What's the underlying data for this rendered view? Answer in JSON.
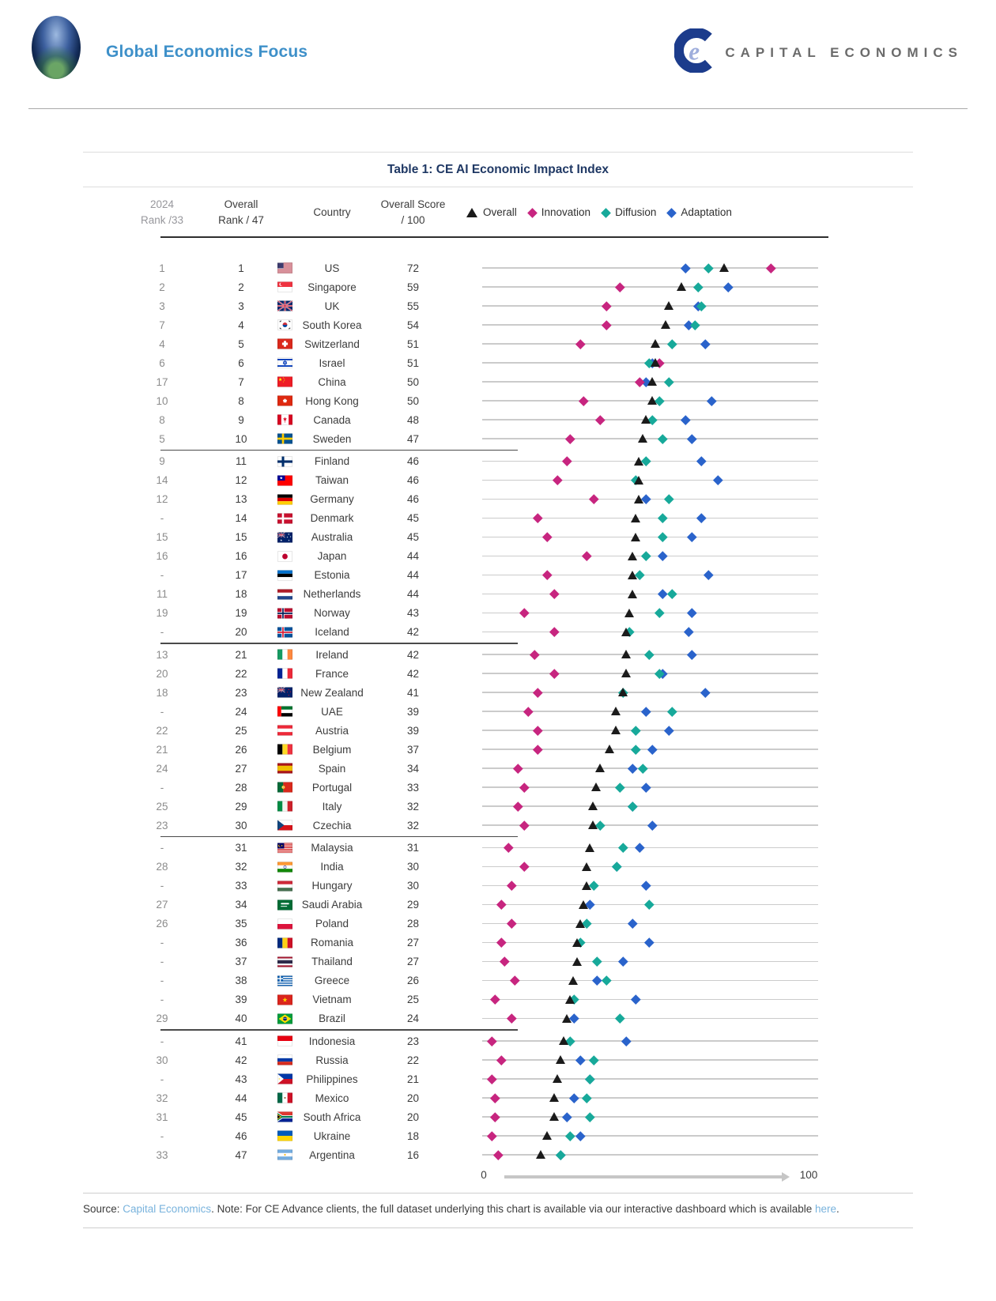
{
  "header": {
    "publication": "Global Economics Focus",
    "brand": "CAPITAL ECONOMICS"
  },
  "table": {
    "title": "Table 1: CE AI Economic Impact Index",
    "columns": {
      "rank_2024_l1": "2024",
      "rank_2024_l2": "Rank /33",
      "overall_rank_l1": "Overall",
      "overall_rank_l2": "Rank / 47",
      "country": "Country",
      "score_l1": "Overall Score",
      "score_l2": "/ 100"
    },
    "legend": [
      {
        "label": "Overall",
        "marker": "triangle",
        "color": "#1B1B1B"
      },
      {
        "label": "Innovation",
        "marker": "diamond",
        "color": "#C7257F"
      },
      {
        "label": "Diffusion",
        "marker": "diamond",
        "color": "#17A99A"
      },
      {
        "label": "Adaptation",
        "marker": "diamond",
        "color": "#2A63CB"
      }
    ],
    "section_breaks_after": [
      10,
      20,
      30,
      40
    ],
    "rows": [
      {
        "rank_2024": "1",
        "overall_rank": "1",
        "country": "US",
        "flag": "us",
        "score": 72,
        "innovation": 86,
        "diffusion": 67,
        "adaptation": 60
      },
      {
        "rank_2024": "2",
        "overall_rank": "2",
        "country": "Singapore",
        "flag": "sg",
        "score": 59,
        "innovation": 40,
        "diffusion": 64,
        "adaptation": 73
      },
      {
        "rank_2024": "3",
        "overall_rank": "3",
        "country": "UK",
        "flag": "gb",
        "score": 55,
        "innovation": 36,
        "diffusion": 65,
        "adaptation": 64
      },
      {
        "rank_2024": "7",
        "overall_rank": "4",
        "country": "South Korea",
        "flag": "kr",
        "score": 54,
        "innovation": 36,
        "diffusion": 63,
        "adaptation": 61
      },
      {
        "rank_2024": "4",
        "overall_rank": "5",
        "country": "Switzerland",
        "flag": "ch",
        "score": 51,
        "innovation": 28,
        "diffusion": 56,
        "adaptation": 66
      },
      {
        "rank_2024": "6",
        "overall_rank": "6",
        "country": "Israel",
        "flag": "il",
        "score": 51,
        "innovation": 52,
        "diffusion": 49,
        "adaptation": 50
      },
      {
        "rank_2024": "17",
        "overall_rank": "7",
        "country": "China",
        "flag": "cn",
        "score": 50,
        "innovation": 46,
        "diffusion": 55,
        "adaptation": 48
      },
      {
        "rank_2024": "10",
        "overall_rank": "8",
        "country": "Hong Kong",
        "flag": "hk",
        "score": 50,
        "innovation": 29,
        "diffusion": 52,
        "adaptation": 68
      },
      {
        "rank_2024": "8",
        "overall_rank": "9",
        "country": "Canada",
        "flag": "ca",
        "score": 48,
        "innovation": 34,
        "diffusion": 50,
        "adaptation": 60
      },
      {
        "rank_2024": "5",
        "overall_rank": "10",
        "country": "Sweden",
        "flag": "se",
        "score": 47,
        "innovation": 25,
        "diffusion": 53,
        "adaptation": 62
      },
      {
        "rank_2024": "9",
        "overall_rank": "11",
        "country": "Finland",
        "flag": "fi",
        "score": 46,
        "innovation": 24,
        "diffusion": 48,
        "adaptation": 65
      },
      {
        "rank_2024": "14",
        "overall_rank": "12",
        "country": "Taiwan",
        "flag": "tw",
        "score": 46,
        "innovation": 21,
        "diffusion": 45,
        "adaptation": 70
      },
      {
        "rank_2024": "12",
        "overall_rank": "13",
        "country": "Germany",
        "flag": "de",
        "score": 46,
        "innovation": 32,
        "diffusion": 55,
        "adaptation": 48
      },
      {
        "rank_2024": "-",
        "overall_rank": "14",
        "country": "Denmark",
        "flag": "dk",
        "score": 45,
        "innovation": 15,
        "diffusion": 53,
        "adaptation": 65
      },
      {
        "rank_2024": "15",
        "overall_rank": "15",
        "country": "Australia",
        "flag": "au",
        "score": 45,
        "innovation": 18,
        "diffusion": 53,
        "adaptation": 62
      },
      {
        "rank_2024": "16",
        "overall_rank": "16",
        "country": "Japan",
        "flag": "jp",
        "score": 44,
        "innovation": 30,
        "diffusion": 48,
        "adaptation": 53
      },
      {
        "rank_2024": "-",
        "overall_rank": "17",
        "country": "Estonia",
        "flag": "ee",
        "score": 44,
        "innovation": 18,
        "diffusion": 46,
        "adaptation": 67
      },
      {
        "rank_2024": "11",
        "overall_rank": "18",
        "country": "Netherlands",
        "flag": "nl",
        "score": 44,
        "innovation": 20,
        "diffusion": 56,
        "adaptation": 53
      },
      {
        "rank_2024": "19",
        "overall_rank": "19",
        "country": "Norway",
        "flag": "no",
        "score": 43,
        "innovation": 11,
        "diffusion": 52,
        "adaptation": 62
      },
      {
        "rank_2024": "-",
        "overall_rank": "20",
        "country": "Iceland",
        "flag": "is",
        "score": 42,
        "innovation": 20,
        "diffusion": 43,
        "adaptation": 61
      },
      {
        "rank_2024": "13",
        "overall_rank": "21",
        "country": "Ireland",
        "flag": "ie",
        "score": 42,
        "innovation": 14,
        "diffusion": 49,
        "adaptation": 62
      },
      {
        "rank_2024": "20",
        "overall_rank": "22",
        "country": "France",
        "flag": "fr",
        "score": 42,
        "innovation": 20,
        "diffusion": 52,
        "adaptation": 53
      },
      {
        "rank_2024": "18",
        "overall_rank": "23",
        "country": "New Zealand",
        "flag": "nz",
        "score": 41,
        "innovation": 15,
        "diffusion": 41,
        "adaptation": 66
      },
      {
        "rank_2024": "-",
        "overall_rank": "24",
        "country": "UAE",
        "flag": "ae",
        "score": 39,
        "innovation": 12,
        "diffusion": 56,
        "adaptation": 48
      },
      {
        "rank_2024": "22",
        "overall_rank": "25",
        "country": "Austria",
        "flag": "at",
        "score": 39,
        "innovation": 15,
        "diffusion": 45,
        "adaptation": 55
      },
      {
        "rank_2024": "21",
        "overall_rank": "26",
        "country": "Belgium",
        "flag": "be",
        "score": 37,
        "innovation": 15,
        "diffusion": 45,
        "adaptation": 50
      },
      {
        "rank_2024": "24",
        "overall_rank": "27",
        "country": "Spain",
        "flag": "es",
        "score": 34,
        "innovation": 9,
        "diffusion": 47,
        "adaptation": 44
      },
      {
        "rank_2024": "-",
        "overall_rank": "28",
        "country": "Portugal",
        "flag": "pt",
        "score": 33,
        "innovation": 11,
        "diffusion": 40,
        "adaptation": 48
      },
      {
        "rank_2024": "25",
        "overall_rank": "29",
        "country": "Italy",
        "flag": "it",
        "score": 32,
        "innovation": 9,
        "diffusion": 44,
        "adaptation": 44
      },
      {
        "rank_2024": "23",
        "overall_rank": "30",
        "country": "Czechia",
        "flag": "cz",
        "score": 32,
        "innovation": 11,
        "diffusion": 34,
        "adaptation": 50
      },
      {
        "rank_2024": "-",
        "overall_rank": "31",
        "country": "Malaysia",
        "flag": "my",
        "score": 31,
        "innovation": 6,
        "diffusion": 41,
        "adaptation": 46
      },
      {
        "rank_2024": "28",
        "overall_rank": "32",
        "country": "India",
        "flag": "in",
        "score": 30,
        "innovation": 11,
        "diffusion": 39,
        "adaptation": 39
      },
      {
        "rank_2024": "-",
        "overall_rank": "33",
        "country": "Hungary",
        "flag": "hu",
        "score": 30,
        "innovation": 7,
        "diffusion": 32,
        "adaptation": 48
      },
      {
        "rank_2024": "27",
        "overall_rank": "34",
        "country": "Saudi Arabia",
        "flag": "sa",
        "score": 29,
        "innovation": 4,
        "diffusion": 49,
        "adaptation": 31
      },
      {
        "rank_2024": "26",
        "overall_rank": "35",
        "country": "Poland",
        "flag": "pl",
        "score": 28,
        "innovation": 7,
        "diffusion": 30,
        "adaptation": 44
      },
      {
        "rank_2024": "-",
        "overall_rank": "36",
        "country": "Romania",
        "flag": "ro",
        "score": 27,
        "innovation": 4,
        "diffusion": 28,
        "adaptation": 49
      },
      {
        "rank_2024": "-",
        "overall_rank": "37",
        "country": "Thailand",
        "flag": "th",
        "score": 27,
        "innovation": 5,
        "diffusion": 33,
        "adaptation": 41
      },
      {
        "rank_2024": "-",
        "overall_rank": "38",
        "country": "Greece",
        "flag": "gr",
        "score": 26,
        "innovation": 8,
        "diffusion": 36,
        "adaptation": 33
      },
      {
        "rank_2024": "-",
        "overall_rank": "39",
        "country": "Vietnam",
        "flag": "vn",
        "score": 25,
        "innovation": 2,
        "diffusion": 26,
        "adaptation": 45
      },
      {
        "rank_2024": "29",
        "overall_rank": "40",
        "country": "Brazil",
        "flag": "br",
        "score": 24,
        "innovation": 7,
        "diffusion": 40,
        "adaptation": 26
      },
      {
        "rank_2024": "-",
        "overall_rank": "41",
        "country": "Indonesia",
        "flag": "id",
        "score": 23,
        "innovation": 1,
        "diffusion": 25,
        "adaptation": 42
      },
      {
        "rank_2024": "30",
        "overall_rank": "42",
        "country": "Russia",
        "flag": "ru",
        "score": 22,
        "innovation": 4,
        "diffusion": 32,
        "adaptation": 28
      },
      {
        "rank_2024": "-",
        "overall_rank": "43",
        "country": "Philippines",
        "flag": "ph",
        "score": 21,
        "innovation": 1,
        "diffusion": 31,
        "adaptation": 31
      },
      {
        "rank_2024": "32",
        "overall_rank": "44",
        "country": "Mexico",
        "flag": "mx",
        "score": 20,
        "innovation": 2,
        "diffusion": 30,
        "adaptation": 26
      },
      {
        "rank_2024": "31",
        "overall_rank": "45",
        "country": "South Africa",
        "flag": "za",
        "score": 20,
        "innovation": 2,
        "diffusion": 31,
        "adaptation": 24
      },
      {
        "rank_2024": "-",
        "overall_rank": "46",
        "country": "Ukraine",
        "flag": "ua",
        "score": 18,
        "innovation": 1,
        "diffusion": 25,
        "adaptation": 28
      },
      {
        "rank_2024": "33",
        "overall_rank": "47",
        "country": "Argentina",
        "flag": "ar",
        "score": 16,
        "innovation": 3,
        "diffusion": 22,
        "adaptation": 22
      }
    ]
  },
  "axis": {
    "min": "0",
    "max": "100"
  },
  "footer": {
    "source_label": "Source: ",
    "source_link": "Capital Economics",
    "note_text": ". Note: For CE Advance clients, the full dataset underlying this chart is available via our interactive dashboard which is available ",
    "here_link": "here",
    "end": "."
  },
  "chart_data": {
    "type": "scatter",
    "title": "Table 1: CE AI Economic Impact Index",
    "xlim": [
      0,
      100
    ],
    "grid": false,
    "legend_position": "top",
    "categories": [
      "US",
      "Singapore",
      "UK",
      "South Korea",
      "Switzerland",
      "Israel",
      "China",
      "Hong Kong",
      "Canada",
      "Sweden",
      "Finland",
      "Taiwan",
      "Germany",
      "Denmark",
      "Australia",
      "Japan",
      "Estonia",
      "Netherlands",
      "Norway",
      "Iceland",
      "Ireland",
      "France",
      "New Zealand",
      "UAE",
      "Austria",
      "Belgium",
      "Spain",
      "Portugal",
      "Italy",
      "Czechia",
      "Malaysia",
      "India",
      "Hungary",
      "Saudi Arabia",
      "Poland",
      "Romania",
      "Thailand",
      "Greece",
      "Vietnam",
      "Brazil",
      "Indonesia",
      "Russia",
      "Philippines",
      "Mexico",
      "South Africa",
      "Ukraine",
      "Argentina"
    ],
    "series": [
      {
        "name": "Overall",
        "values": [
          72,
          59,
          55,
          54,
          51,
          51,
          50,
          50,
          48,
          47,
          46,
          46,
          46,
          45,
          45,
          44,
          44,
          44,
          43,
          42,
          42,
          42,
          41,
          39,
          39,
          37,
          34,
          33,
          32,
          32,
          31,
          30,
          30,
          29,
          28,
          27,
          27,
          26,
          25,
          24,
          23,
          22,
          21,
          20,
          20,
          18,
          16
        ]
      },
      {
        "name": "Innovation",
        "values": [
          86,
          40,
          36,
          36,
          28,
          52,
          46,
          29,
          34,
          25,
          24,
          21,
          32,
          15,
          18,
          30,
          18,
          20,
          11,
          20,
          14,
          20,
          15,
          12,
          15,
          15,
          9,
          11,
          9,
          11,
          6,
          11,
          7,
          4,
          7,
          4,
          5,
          8,
          2,
          7,
          1,
          4,
          1,
          2,
          2,
          1,
          3
        ]
      },
      {
        "name": "Diffusion",
        "values": [
          67,
          64,
          65,
          63,
          56,
          49,
          55,
          52,
          50,
          53,
          48,
          45,
          55,
          53,
          53,
          48,
          46,
          56,
          52,
          43,
          49,
          52,
          41,
          56,
          45,
          45,
          47,
          40,
          44,
          34,
          41,
          39,
          32,
          49,
          30,
          28,
          33,
          36,
          26,
          40,
          25,
          32,
          31,
          30,
          31,
          25,
          22
        ]
      },
      {
        "name": "Adaptation",
        "values": [
          60,
          73,
          64,
          61,
          66,
          50,
          48,
          68,
          60,
          62,
          65,
          70,
          48,
          65,
          62,
          53,
          67,
          53,
          62,
          61,
          62,
          53,
          66,
          48,
          55,
          50,
          44,
          48,
          44,
          50,
          46,
          39,
          48,
          31,
          44,
          49,
          41,
          33,
          45,
          26,
          42,
          28,
          31,
          26,
          24,
          28,
          22
        ]
      }
    ]
  }
}
